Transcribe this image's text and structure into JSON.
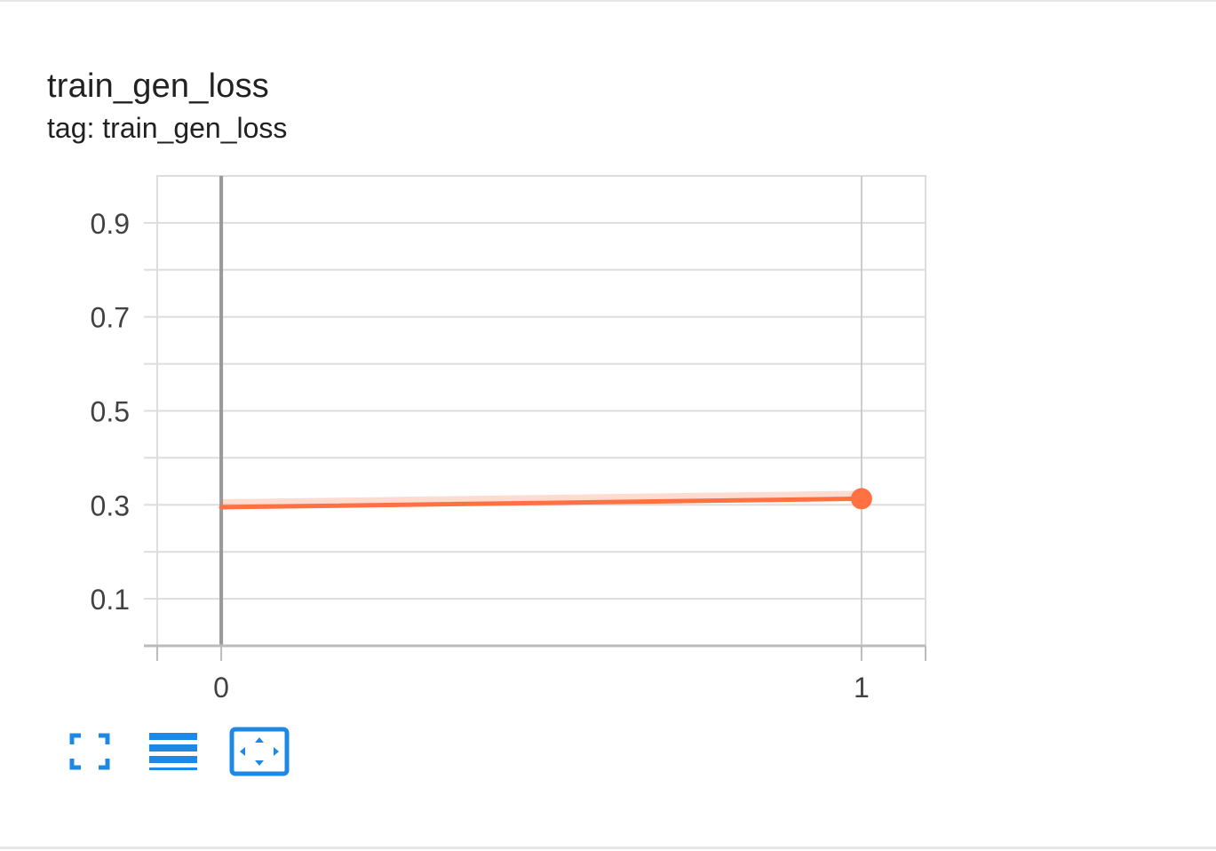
{
  "card": {
    "title": "train_gen_loss",
    "tag_text": "tag: train_gen_loss"
  },
  "toolbar": {
    "icons": [
      "fullscreen-icon",
      "data-table-icon",
      "fit-domain-icon"
    ]
  },
  "colors": {
    "series": "#ff7043",
    "accent": "#1e88e5",
    "grid": "#dddddd",
    "axis": "#999999"
  },
  "chart_data": {
    "type": "line",
    "xlim": [
      -0.1,
      1.1
    ],
    "ylim": [
      0,
      1
    ],
    "x_ticks": [
      "0",
      "1"
    ],
    "y_ticks": [
      "0.9",
      "0.7",
      "0.5",
      "0.3",
      "0.1"
    ],
    "grid": true,
    "series": [
      {
        "x": [
          0,
          1
        ],
        "y": [
          0.295,
          0.313
        ],
        "color": "#ff7043"
      }
    ]
  }
}
